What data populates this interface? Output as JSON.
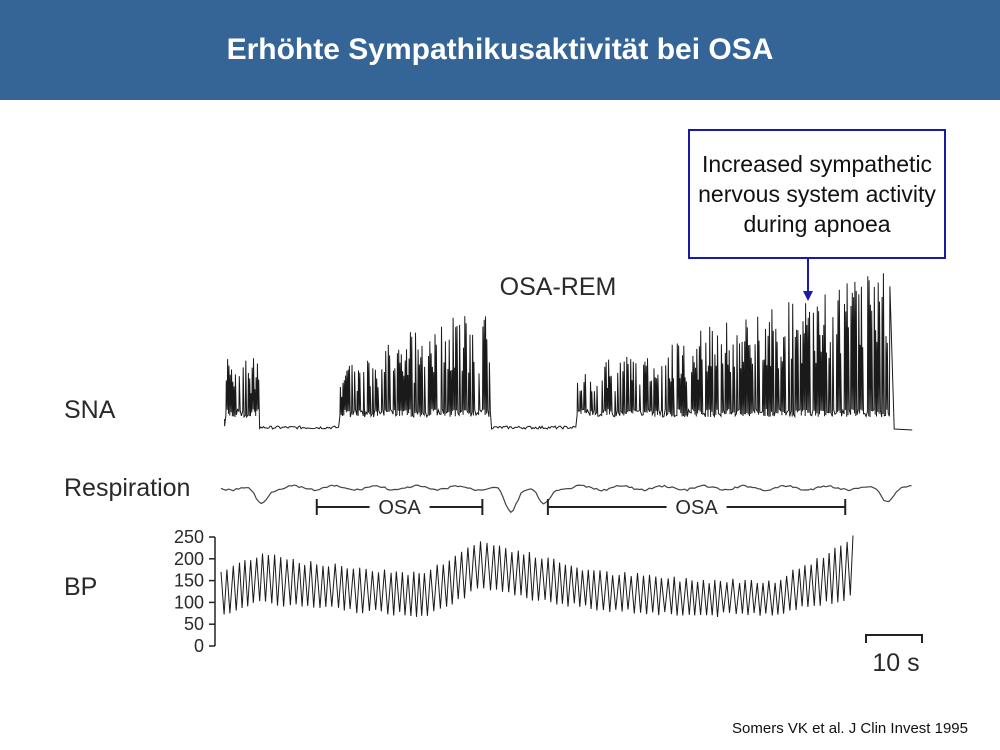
{
  "slide": {
    "title": "Erhöhte Sympathikusaktivität bei OSA",
    "callout": "Increased sympathetic nervous system activity during apnoea",
    "citation": "Somers VK et al. J Clin Invest 1995"
  },
  "colors": {
    "header": "#356596",
    "title_text": "#ffffff",
    "callout_border": "#1a1aa8",
    "arrow": "#1a1aa8",
    "trace": "#1a1a1a"
  },
  "chart_data": {
    "type": "line",
    "title": "OSA-REM",
    "channels": [
      {
        "name": "SNA"
      },
      {
        "name": "Respiration"
      },
      {
        "name": "BP",
        "ylim": [
          0,
          250
        ],
        "ticks": [
          0,
          50,
          100,
          150,
          200,
          250
        ]
      }
    ],
    "bp_envelope": {
      "x_s": [
        0,
        6,
        12,
        28,
        36,
        52,
        66,
        77,
        83,
        88
      ],
      "upper_mmHg": [
        170,
        215,
        190,
        165,
        240,
        170,
        150,
        150,
        200,
        250
      ],
      "lower_mmHg": [
        75,
        100,
        90,
        70,
        130,
        85,
        70,
        75,
        95,
        115
      ]
    },
    "osa_periods": [
      {
        "label": "OSA",
        "start_s": 13.3,
        "end_s": 36.3
      },
      {
        "label": "OSA",
        "start_s": 45.4,
        "end_s": 86.7
      }
    ],
    "scale_bar": {
      "value": 10,
      "unit": "s",
      "label": "10 s"
    }
  }
}
